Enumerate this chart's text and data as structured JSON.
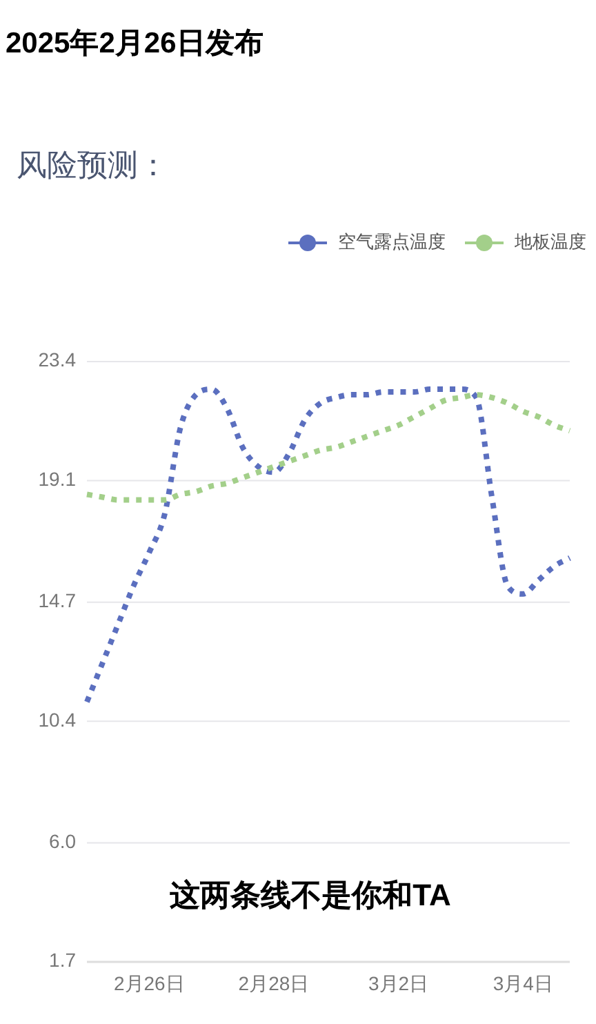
{
  "chart_data": {
    "type": "line",
    "title": "2025年2月26日发布",
    "subtitle": "风险预测：",
    "annotations": [
      "这两条线不是你和TA"
    ],
    "categories": [
      null,
      null,
      null,
      null,
      "2月26日",
      null,
      null,
      null,
      null,
      null,
      null,
      null,
      "2月28日",
      null,
      null,
      null,
      null,
      null,
      null,
      null,
      "3月2日",
      null,
      null,
      null,
      null,
      null,
      null,
      null,
      "3月4日",
      null,
      null,
      null
    ],
    "series": [
      {
        "name": "空气露点温度",
        "color": "#5b6fbf",
        "values": [
          11.1,
          12.5,
          13.9,
          15.3,
          16.5,
          17.9,
          21.0,
          22.2,
          22.4,
          21.7,
          20.3,
          19.6,
          19.4,
          20.1,
          21.3,
          21.9,
          22.1,
          22.2,
          22.2,
          22.3,
          22.3,
          22.3,
          22.4,
          22.4,
          22.4,
          22.1,
          18.5,
          15.3,
          15.0,
          15.5,
          16.0,
          16.3
        ]
      },
      {
        "name": "地板温度",
        "color": "#a3cf8a",
        "values": [
          18.6,
          18.5,
          18.4,
          18.4,
          18.4,
          18.4,
          18.6,
          18.7,
          18.9,
          19.0,
          19.2,
          19.4,
          19.6,
          19.8,
          20.0,
          20.2,
          20.3,
          20.5,
          20.7,
          20.9,
          21.1,
          21.4,
          21.7,
          22.0,
          22.1,
          22.2,
          22.1,
          21.9,
          21.6,
          21.4,
          21.1,
          20.9
        ]
      }
    ],
    "ylim": [
      1.7,
      23.4
    ],
    "yticks": [
      1.7,
      {
        "value": 6,
        "label": "6.0"
      },
      10.4,
      14.7,
      19.1,
      23.4
    ],
    "grid": "y",
    "legend": "top right",
    "line_style": "dotted"
  }
}
